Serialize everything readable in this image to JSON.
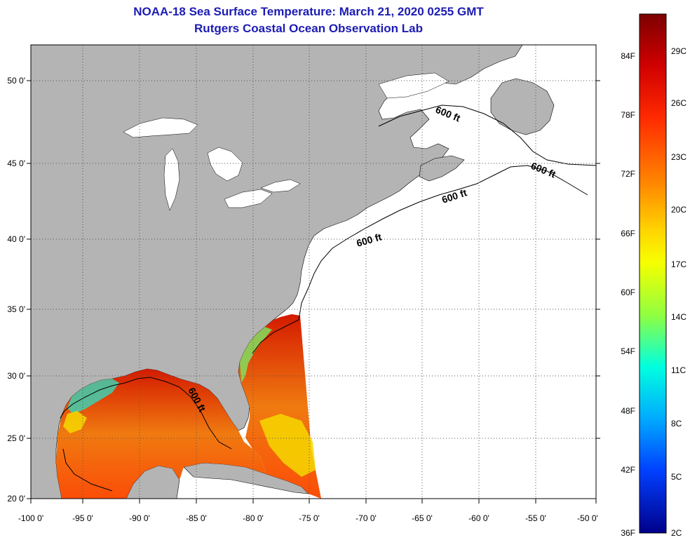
{
  "header": {
    "title": "NOAA-18 Sea Surface Temperature:  March 21, 2020 0255 GMT",
    "subtitle": "Rutgers Coastal Ocean Observation Lab"
  },
  "map": {
    "lon_labels": [
      "-100 0'",
      "-95 0'",
      "-90 0'",
      "-85 0'",
      "-80 0'",
      "-75 0'",
      "-70 0'",
      "-65 0'",
      "-60 0'",
      "-55 0'",
      "-50 0'"
    ],
    "lat_labels": [
      "50 0'",
      "45 0'",
      "40 0'",
      "35 0'",
      "30 0'",
      "25 0'",
      "20 0'"
    ],
    "contour_labels": [
      "600 ft",
      "600 ft",
      "600 ft",
      "600 ft",
      "600 ft"
    ],
    "colors": {
      "land": "#b4b4b4",
      "ocean_nodata": "#ffffff",
      "grid": "#555555"
    }
  },
  "colorbar": {
    "f_labels": [
      "84F",
      "78F",
      "72F",
      "66F",
      "60F",
      "54F",
      "48F",
      "42F",
      "36F"
    ],
    "c_labels": [
      "29C",
      "26C",
      "23C",
      "20C",
      "17C",
      "14C",
      "11C",
      "8C",
      "5C",
      "2C"
    ]
  }
}
